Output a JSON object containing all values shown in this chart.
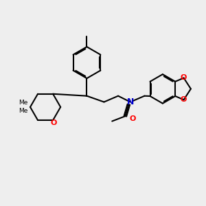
{
  "bg_color": "#eeeeee",
  "bond_color": "#000000",
  "N_color": "#0000cc",
  "O_color": "#ff0000",
  "lw": 1.5,
  "dbo": 0.055,
  "figw": 3.0,
  "figh": 3.0,
  "dpi": 100,
  "xlim": [
    0,
    10
  ],
  "ylim": [
    0,
    10
  ]
}
